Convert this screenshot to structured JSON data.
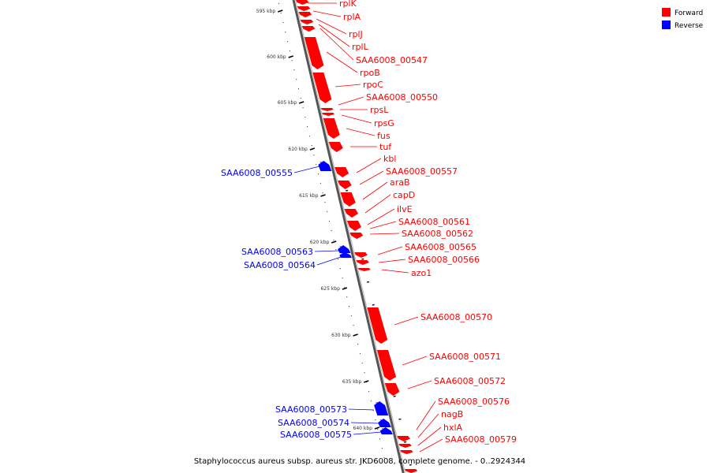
{
  "caption": "Staphylococcus aureus subsp. aureus str. JKD6008, complete genome. - 0..2924344",
  "legend": {
    "forward": {
      "label": "Forward",
      "color": "#ff0000"
    },
    "reverse": {
      "label": "Reverse",
      "color": "#0000ff"
    }
  },
  "scale_ticks": [
    "595 kbp",
    "600 kbp",
    "605 kbp",
    "610 kbp",
    "615 kbp",
    "620 kbp",
    "625 kbp",
    "630 kbp",
    "635 kbp",
    "640 kbp"
  ],
  "forward_genes": [
    "rplK",
    "rplA",
    "rplJ",
    "rplL",
    "SAA6008_00547",
    "rpoB",
    "rpoC",
    "SAA6008_00550",
    "rpsL",
    "rpsG",
    "fus",
    "tuf",
    "kbl",
    "SAA6008_00557",
    "araB",
    "capD",
    "ilvE",
    "SAA6008_00561",
    "SAA6008_00562",
    "SAA6008_00565",
    "SAA6008_00566",
    "azo1",
    "SAA6008_00570",
    "SAA6008_00571",
    "SAA6008_00572",
    "SAA6008_00576",
    "nagB",
    "hxlA",
    "SAA6008_00579"
  ],
  "reverse_genes": [
    "SAA6008_00555",
    "SAA6008_00563",
    "SAA6008_00564",
    "SAA6008_00573",
    "SAA6008_00574",
    "SAA6008_00575"
  ]
}
